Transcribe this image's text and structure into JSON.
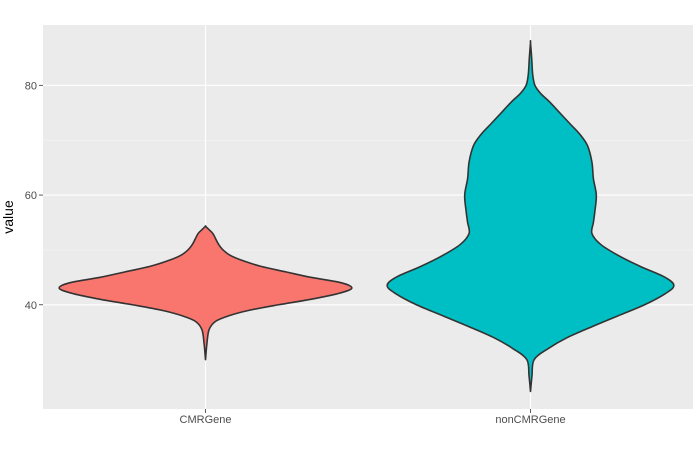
{
  "chart_data": {
    "type": "violin",
    "title": "",
    "xlabel": "",
    "ylabel": "value",
    "ylim": [
      21,
      91
    ],
    "yticks": [
      40,
      60,
      80
    ],
    "grid": true,
    "legend": "none",
    "categories": [
      "CMRGene",
      "nonCMRGene"
    ],
    "series": [
      {
        "category": "CMRGene",
        "color": "#F8766D",
        "min": 30,
        "max": 54.3,
        "profile": [
          [
            30,
            0.0
          ],
          [
            33,
            0.01
          ],
          [
            35.5,
            0.025
          ],
          [
            37,
            0.07
          ],
          [
            38,
            0.16
          ],
          [
            39,
            0.3
          ],
          [
            40,
            0.5
          ],
          [
            41,
            0.72
          ],
          [
            42,
            0.9
          ],
          [
            43,
            1.0
          ],
          [
            44,
            0.93
          ],
          [
            45,
            0.72
          ],
          [
            46,
            0.55
          ],
          [
            47,
            0.38
          ],
          [
            48,
            0.26
          ],
          [
            49,
            0.17
          ],
          [
            50,
            0.12
          ],
          [
            51,
            0.09
          ],
          [
            52,
            0.07
          ],
          [
            53,
            0.05
          ],
          [
            53.8,
            0.02
          ],
          [
            54.3,
            0.0
          ]
        ]
      },
      {
        "category": "nonCMRGene",
        "color": "#00BFC4",
        "min": 24.2,
        "max": 87.8,
        "profile": [
          [
            24.2,
            0.0
          ],
          [
            27,
            0.01
          ],
          [
            30,
            0.025
          ],
          [
            32,
            0.12
          ],
          [
            34,
            0.25
          ],
          [
            36,
            0.42
          ],
          [
            38,
            0.6
          ],
          [
            40,
            0.78
          ],
          [
            42,
            0.92
          ],
          [
            43.5,
            0.98
          ],
          [
            45,
            0.92
          ],
          [
            47,
            0.75
          ],
          [
            49,
            0.6
          ],
          [
            51,
            0.48
          ],
          [
            53,
            0.42
          ],
          [
            55,
            0.43
          ],
          [
            57,
            0.44
          ],
          [
            60,
            0.45
          ],
          [
            63,
            0.43
          ],
          [
            66,
            0.42
          ],
          [
            69,
            0.39
          ],
          [
            71,
            0.34
          ],
          [
            73,
            0.27
          ],
          [
            75,
            0.2
          ],
          [
            77,
            0.13
          ],
          [
            78.5,
            0.07
          ],
          [
            80,
            0.03
          ],
          [
            82,
            0.015
          ],
          [
            85,
            0.008
          ],
          [
            87.8,
            0.0
          ]
        ]
      }
    ]
  }
}
